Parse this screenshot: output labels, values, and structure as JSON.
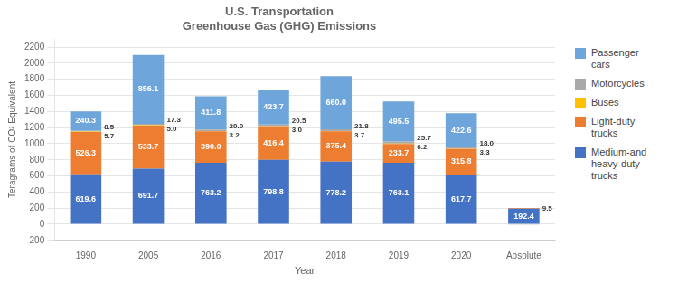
{
  "chart_data": {
    "type": "bar",
    "title": "U.S. Transportation\nGreenhouse Gas (GHG) Emissions",
    "xlabel": "Year",
    "ylabel": "Teragrams of CO² Equivalent",
    "categories": [
      "1990",
      "2005",
      "2016",
      "2017",
      "2018",
      "2019",
      "2020",
      "Absolute"
    ],
    "stacked": true,
    "series": [
      {
        "name": "Medium-and\nheavy-duty\ntrucks",
        "color": "#4472C4",
        "values": [
          619.6,
          691.7,
          763.2,
          798.8,
          778.2,
          763.1,
          617.7,
          192.4
        ],
        "value_labels": [
          "619.6",
          "691.7",
          "763.2",
          "798.8",
          "778.2",
          "763.1",
          "617.7",
          "192.4"
        ]
      },
      {
        "name": "Light-duty\ntrucks",
        "color": "#ED7D31",
        "values": [
          526.3,
          533.7,
          390.0,
          416.4,
          375.4,
          233.7,
          315.8,
          9.5
        ],
        "value_labels": [
          "526.3",
          "533.7",
          "390.0",
          "416.4",
          "375.4",
          "233.7",
          "315.8",
          "9.5"
        ]
      },
      {
        "name": "Buses",
        "color": "#FFC000",
        "values": [
          5.7,
          5.0,
          3.2,
          3.0,
          3.7,
          6.2,
          3.3,
          0.0
        ],
        "value_labels": [
          "5.7",
          "5.0",
          "3.2",
          "3.0",
          "3.7",
          "6.2",
          "3.3",
          null
        ]
      },
      {
        "name": "Motorcycles",
        "color": "#A9A9A9",
        "values": [
          8.5,
          17.3,
          20.0,
          20.5,
          21.8,
          25.7,
          18.0,
          0.0
        ],
        "value_labels": [
          "8.5",
          "17.3",
          "20.0",
          "20.5",
          "21.8",
          "25.7",
          "18.0",
          null
        ]
      },
      {
        "name": "Passenger\ncars",
        "color": "#6EA6DC",
        "values": [
          240.3,
          856.1,
          411.8,
          423.7,
          660.0,
          495.5,
          422.6,
          0.0
        ],
        "value_labels": [
          "240.3",
          "856.1",
          "411.8",
          "423.7",
          "660.0",
          "495.5",
          "422.6",
          null
        ]
      },
      {
        "color": "#A9A9A9",
        "values": [
          null,
          null,
          null,
          null,
          null,
          null,
          null,
          -2.0
        ]
      }
    ],
    "ylim": [
      -200,
      2300
    ],
    "yticks": [
      -200,
      0,
      200,
      400,
      600,
      800,
      1000,
      1200,
      1400,
      1600,
      1800,
      2000,
      2200
    ],
    "grid": true,
    "legend": "right",
    "data_labels": true
  }
}
